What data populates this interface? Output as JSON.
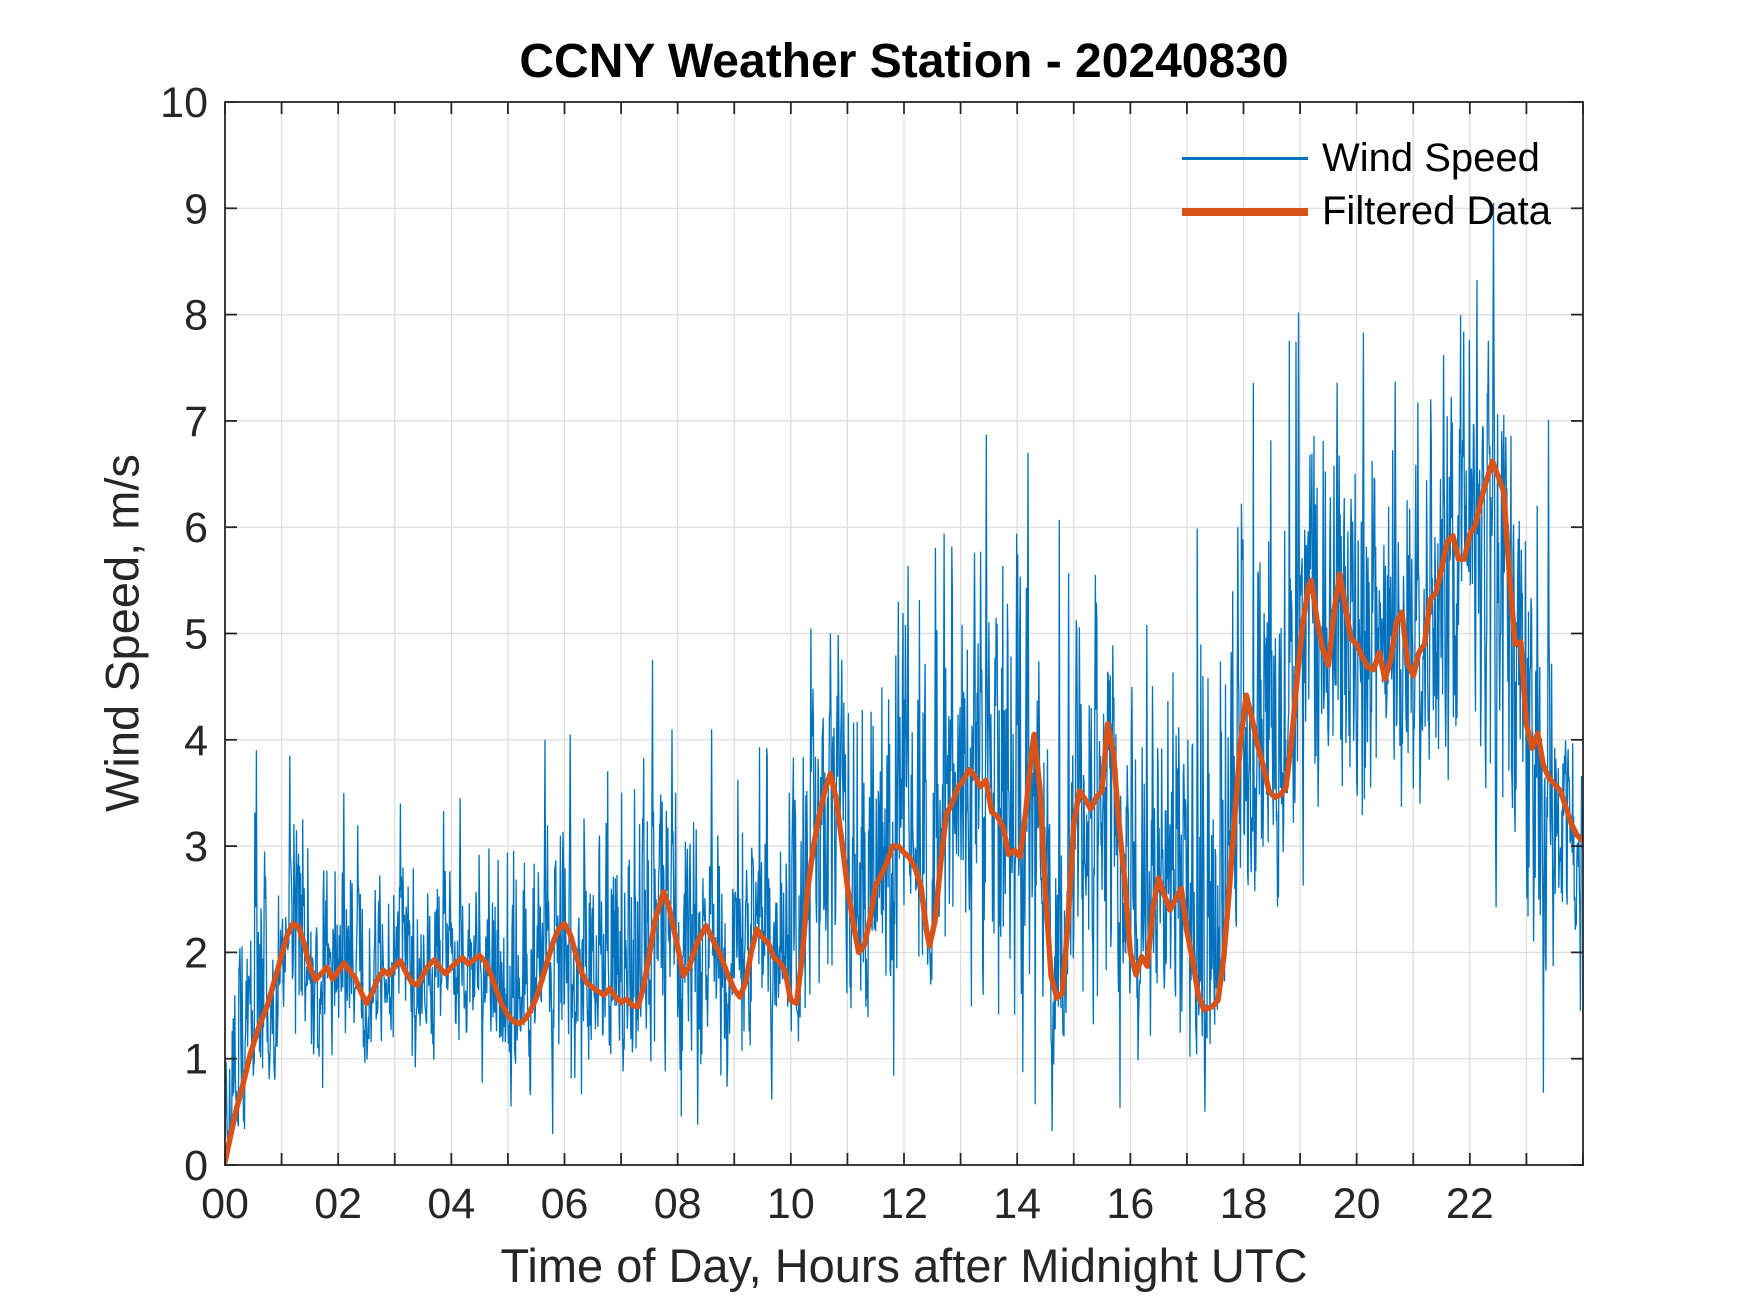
{
  "colors": {
    "background": "#ffffff",
    "axis": "#262626",
    "grid": "#dcdcdc",
    "wind_blue": "#0072BD",
    "filtered_orange": "#D95319",
    "title_color": "#000000"
  },
  "chart_data": {
    "type": "line",
    "title": "CCNY Weather Station - 20240830",
    "xlabel": "Time of Day, Hours after Midnight UTC",
    "ylabel": "Wind Speed, m/s",
    "axes": {
      "xlim": [
        0,
        24
      ],
      "ylim": [
        0,
        10
      ],
      "xtick_values": [
        0,
        2,
        4,
        6,
        8,
        10,
        12,
        14,
        16,
        18,
        20,
        22
      ],
      "xtick_labels": [
        "00",
        "02",
        "04",
        "06",
        "08",
        "10",
        "12",
        "14",
        "16",
        "18",
        "20",
        "22"
      ],
      "xtick_minor_every_hours": 1,
      "ytick_values": [
        0,
        1,
        2,
        3,
        4,
        5,
        6,
        7,
        8,
        9,
        10
      ],
      "ytick_labels": [
        "0",
        "1",
        "2",
        "3",
        "4",
        "5",
        "6",
        "7",
        "8",
        "9",
        "10"
      ],
      "grid": "on",
      "grid_x_every_hours": 1,
      "grid_y_every_mps": 1,
      "box": "on"
    },
    "legend": {
      "position": "northeast",
      "frame": "off",
      "entries": [
        "Wind Speed",
        "Filtered Data"
      ]
    },
    "series": [
      {
        "name": "Wind Speed",
        "color": "#0072BD",
        "line_width": 1.3,
        "kind": "raw_noisy_trace",
        "samples_per_hour": 110,
        "seed": 20240830,
        "hourly_envelope": {
          "hours": [
            0,
            1,
            2,
            3,
            4,
            5,
            6,
            7,
            8,
            9,
            10,
            11,
            12,
            13,
            14,
            15,
            16,
            17,
            18,
            19,
            20,
            21,
            22,
            23,
            24
          ],
          "min": [
            0.1,
            0.6,
            0.7,
            0.75,
            0.8,
            0.55,
            0.45,
            0.5,
            0.35,
            0.6,
            0.6,
            1.0,
            0.9,
            1.1,
            0.3,
            0.9,
            0.7,
            0.5,
            1.3,
            2.2,
            2.4,
            2.7,
            2.2,
            0.7,
            1.5
          ],
          "max": [
            3.3,
            3.9,
            3.5,
            3.45,
            3.5,
            3.6,
            4.05,
            4.75,
            4.1,
            3.6,
            5.05,
            5.3,
            5.9,
            6.87,
            6.7,
            5.6,
            5.2,
            6.0,
            8.0,
            7.85,
            7.4,
            7.85,
            9.05,
            7.0,
            4.2
          ]
        },
        "notable_extremes": [
          [
            0.55,
            3.9
          ],
          [
            1.15,
            3.85
          ],
          [
            2.1,
            3.5
          ],
          [
            3.1,
            3.4
          ],
          [
            4.15,
            3.45
          ],
          [
            5.05,
            0.55
          ],
          [
            5.65,
            4.0
          ],
          [
            6.1,
            4.05
          ],
          [
            7.55,
            4.75
          ],
          [
            7.9,
            4.1
          ],
          [
            8.35,
            0.38
          ],
          [
            8.6,
            4.1
          ],
          [
            10.35,
            5.05
          ],
          [
            10.7,
            5.0
          ],
          [
            11.9,
            5.3
          ],
          [
            12.71,
            5.94
          ],
          [
            13.35,
            5.77
          ],
          [
            13.45,
            6.87
          ],
          [
            13.99,
            5.94
          ],
          [
            14.19,
            6.7
          ],
          [
            14.62,
            0.32
          ],
          [
            14.91,
            5.57
          ],
          [
            15.38,
            5.55
          ],
          [
            16.29,
            5.08
          ],
          [
            17.32,
            0.5
          ],
          [
            17.9,
            6.0
          ],
          [
            18.97,
            8.02
          ],
          [
            19.65,
            7.36
          ],
          [
            20.12,
            7.83
          ],
          [
            20.68,
            7.37
          ],
          [
            21.54,
            7.62
          ],
          [
            21.89,
            7.84
          ],
          [
            22.42,
            9.05
          ],
          [
            23.3,
            0.68
          ],
          [
            23.39,
            7.01
          ],
          [
            23.95,
            1.45
          ]
        ]
      },
      {
        "name": "Filtered Data",
        "color": "#D95319",
        "line_width": 5.5,
        "kind": "smoothed_trace",
        "points": [
          [
            0.0,
            0.03
          ],
          [
            0.1,
            0.28
          ],
          [
            0.2,
            0.52
          ],
          [
            0.3,
            0.72
          ],
          [
            0.45,
            1.05
          ],
          [
            0.6,
            1.3
          ],
          [
            0.75,
            1.5
          ],
          [
            0.9,
            1.78
          ],
          [
            1.0,
            1.97
          ],
          [
            1.1,
            2.16
          ],
          [
            1.2,
            2.27
          ],
          [
            1.3,
            2.24
          ],
          [
            1.4,
            2.08
          ],
          [
            1.5,
            1.86
          ],
          [
            1.6,
            1.74
          ],
          [
            1.7,
            1.8
          ],
          [
            1.8,
            1.86
          ],
          [
            1.9,
            1.75
          ],
          [
            2.0,
            1.82
          ],
          [
            2.1,
            1.9
          ],
          [
            2.2,
            1.83
          ],
          [
            2.3,
            1.76
          ],
          [
            2.4,
            1.63
          ],
          [
            2.5,
            1.52
          ],
          [
            2.6,
            1.62
          ],
          [
            2.7,
            1.75
          ],
          [
            2.8,
            1.83
          ],
          [
            2.9,
            1.79
          ],
          [
            3.0,
            1.87
          ],
          [
            3.1,
            1.92
          ],
          [
            3.2,
            1.81
          ],
          [
            3.3,
            1.72
          ],
          [
            3.4,
            1.69
          ],
          [
            3.5,
            1.79
          ],
          [
            3.6,
            1.88
          ],
          [
            3.7,
            1.93
          ],
          [
            3.8,
            1.85
          ],
          [
            3.9,
            1.8
          ],
          [
            4.0,
            1.86
          ],
          [
            4.1,
            1.91
          ],
          [
            4.2,
            1.95
          ],
          [
            4.3,
            1.89
          ],
          [
            4.4,
            1.93
          ],
          [
            4.5,
            1.97
          ],
          [
            4.6,
            1.91
          ],
          [
            4.7,
            1.79
          ],
          [
            4.8,
            1.64
          ],
          [
            4.9,
            1.5
          ],
          [
            5.0,
            1.41
          ],
          [
            5.1,
            1.35
          ],
          [
            5.2,
            1.33
          ],
          [
            5.3,
            1.37
          ],
          [
            5.4,
            1.45
          ],
          [
            5.5,
            1.57
          ],
          [
            5.6,
            1.74
          ],
          [
            5.7,
            1.92
          ],
          [
            5.8,
            2.1
          ],
          [
            5.9,
            2.22
          ],
          [
            6.0,
            2.27
          ],
          [
            6.1,
            2.17
          ],
          [
            6.2,
            1.99
          ],
          [
            6.3,
            1.81
          ],
          [
            6.4,
            1.71
          ],
          [
            6.5,
            1.67
          ],
          [
            6.6,
            1.63
          ],
          [
            6.7,
            1.6
          ],
          [
            6.8,
            1.66
          ],
          [
            6.9,
            1.58
          ],
          [
            7.0,
            1.53
          ],
          [
            7.1,
            1.56
          ],
          [
            7.2,
            1.5
          ],
          [
            7.3,
            1.49
          ],
          [
            7.4,
            1.68
          ],
          [
            7.5,
            1.98
          ],
          [
            7.6,
            2.3
          ],
          [
            7.75,
            2.57
          ],
          [
            7.85,
            2.42
          ],
          [
            8.0,
            2.05
          ],
          [
            8.1,
            1.78
          ],
          [
            8.2,
            1.86
          ],
          [
            8.35,
            2.1
          ],
          [
            8.5,
            2.25
          ],
          [
            8.6,
            2.14
          ],
          [
            8.75,
            1.98
          ],
          [
            8.9,
            1.77
          ],
          [
            9.0,
            1.65
          ],
          [
            9.1,
            1.58
          ],
          [
            9.2,
            1.72
          ],
          [
            9.3,
            2.0
          ],
          [
            9.4,
            2.22
          ],
          [
            9.5,
            2.14
          ],
          [
            9.6,
            2.09
          ],
          [
            9.7,
            1.95
          ],
          [
            9.8,
            1.91
          ],
          [
            9.9,
            1.82
          ],
          [
            10.0,
            1.55
          ],
          [
            10.1,
            1.52
          ],
          [
            10.2,
            1.95
          ],
          [
            10.3,
            2.6
          ],
          [
            10.4,
            3.0
          ],
          [
            10.5,
            3.28
          ],
          [
            10.6,
            3.52
          ],
          [
            10.7,
            3.68
          ],
          [
            10.8,
            3.45
          ],
          [
            10.9,
            3.05
          ],
          [
            11.0,
            2.62
          ],
          [
            11.1,
            2.28
          ],
          [
            11.2,
            2.0
          ],
          [
            11.3,
            2.07
          ],
          [
            11.4,
            2.32
          ],
          [
            11.5,
            2.63
          ],
          [
            11.6,
            2.73
          ],
          [
            11.7,
            2.85
          ],
          [
            11.8,
            3.0
          ],
          [
            11.9,
            3.0
          ],
          [
            12.0,
            2.94
          ],
          [
            12.1,
            2.89
          ],
          [
            12.2,
            2.79
          ],
          [
            12.3,
            2.62
          ],
          [
            12.4,
            2.2
          ],
          [
            12.45,
            2.06
          ],
          [
            12.55,
            2.3
          ],
          [
            12.65,
            2.85
          ],
          [
            12.75,
            3.3
          ],
          [
            12.85,
            3.4
          ],
          [
            12.95,
            3.55
          ],
          [
            13.05,
            3.62
          ],
          [
            13.15,
            3.72
          ],
          [
            13.25,
            3.66
          ],
          [
            13.35,
            3.56
          ],
          [
            13.45,
            3.62
          ],
          [
            13.55,
            3.32
          ],
          [
            13.65,
            3.28
          ],
          [
            13.75,
            3.18
          ],
          [
            13.85,
            2.92
          ],
          [
            13.95,
            2.96
          ],
          [
            14.05,
            2.9
          ],
          [
            14.15,
            3.32
          ],
          [
            14.25,
            3.85
          ],
          [
            14.3,
            4.05
          ],
          [
            14.4,
            3.55
          ],
          [
            14.5,
            2.55
          ],
          [
            14.6,
            1.78
          ],
          [
            14.7,
            1.57
          ],
          [
            14.8,
            1.62
          ],
          [
            14.9,
            2.3
          ],
          [
            15.0,
            3.2
          ],
          [
            15.1,
            3.52
          ],
          [
            15.2,
            3.44
          ],
          [
            15.3,
            3.35
          ],
          [
            15.4,
            3.46
          ],
          [
            15.5,
            3.52
          ],
          [
            15.6,
            4.15
          ],
          [
            15.7,
            3.88
          ],
          [
            15.8,
            3.2
          ],
          [
            15.9,
            2.68
          ],
          [
            16.0,
            2.0
          ],
          [
            16.1,
            1.79
          ],
          [
            16.2,
            1.96
          ],
          [
            16.3,
            1.87
          ],
          [
            16.4,
            2.42
          ],
          [
            16.5,
            2.7
          ],
          [
            16.6,
            2.54
          ],
          [
            16.7,
            2.4
          ],
          [
            16.8,
            2.5
          ],
          [
            16.9,
            2.6
          ],
          [
            17.0,
            2.2
          ],
          [
            17.1,
            1.93
          ],
          [
            17.2,
            1.6
          ],
          [
            17.3,
            1.46
          ],
          [
            17.45,
            1.49
          ],
          [
            17.55,
            1.55
          ],
          [
            17.65,
            1.95
          ],
          [
            17.75,
            2.6
          ],
          [
            17.85,
            3.3
          ],
          [
            17.95,
            4.0
          ],
          [
            18.05,
            4.42
          ],
          [
            18.15,
            4.2
          ],
          [
            18.25,
            3.95
          ],
          [
            18.35,
            3.75
          ],
          [
            18.45,
            3.52
          ],
          [
            18.55,
            3.46
          ],
          [
            18.65,
            3.48
          ],
          [
            18.75,
            3.55
          ],
          [
            18.85,
            4.0
          ],
          [
            18.95,
            4.6
          ],
          [
            19.05,
            5.1
          ],
          [
            19.15,
            5.45
          ],
          [
            19.2,
            5.5
          ],
          [
            19.3,
            5.12
          ],
          [
            19.4,
            4.85
          ],
          [
            19.5,
            4.7
          ],
          [
            19.6,
            5.2
          ],
          [
            19.7,
            5.56
          ],
          [
            19.8,
            5.25
          ],
          [
            19.9,
            4.95
          ],
          [
            20.0,
            4.9
          ],
          [
            20.1,
            4.78
          ],
          [
            20.2,
            4.68
          ],
          [
            20.3,
            4.66
          ],
          [
            20.4,
            4.82
          ],
          [
            20.5,
            4.57
          ],
          [
            20.6,
            4.75
          ],
          [
            20.7,
            5.1
          ],
          [
            20.8,
            5.2
          ],
          [
            20.9,
            4.73
          ],
          [
            21.0,
            4.6
          ],
          [
            21.1,
            4.82
          ],
          [
            21.2,
            4.9
          ],
          [
            21.3,
            5.32
          ],
          [
            21.4,
            5.38
          ],
          [
            21.5,
            5.6
          ],
          [
            21.6,
            5.86
          ],
          [
            21.7,
            5.92
          ],
          [
            21.8,
            5.7
          ],
          [
            21.9,
            5.7
          ],
          [
            22.0,
            5.93
          ],
          [
            22.1,
            6.02
          ],
          [
            22.2,
            6.26
          ],
          [
            22.3,
            6.45
          ],
          [
            22.4,
            6.62
          ],
          [
            22.5,
            6.48
          ],
          [
            22.6,
            6.33
          ],
          [
            22.7,
            5.55
          ],
          [
            22.8,
            4.9
          ],
          [
            22.9,
            4.92
          ],
          [
            23.0,
            4.15
          ],
          [
            23.1,
            3.92
          ],
          [
            23.2,
            4.06
          ],
          [
            23.3,
            3.76
          ],
          [
            23.4,
            3.64
          ],
          [
            23.5,
            3.58
          ],
          [
            23.6,
            3.52
          ],
          [
            23.7,
            3.36
          ],
          [
            23.8,
            3.2
          ],
          [
            23.9,
            3.1
          ],
          [
            24.0,
            3.05
          ]
        ]
      }
    ]
  }
}
